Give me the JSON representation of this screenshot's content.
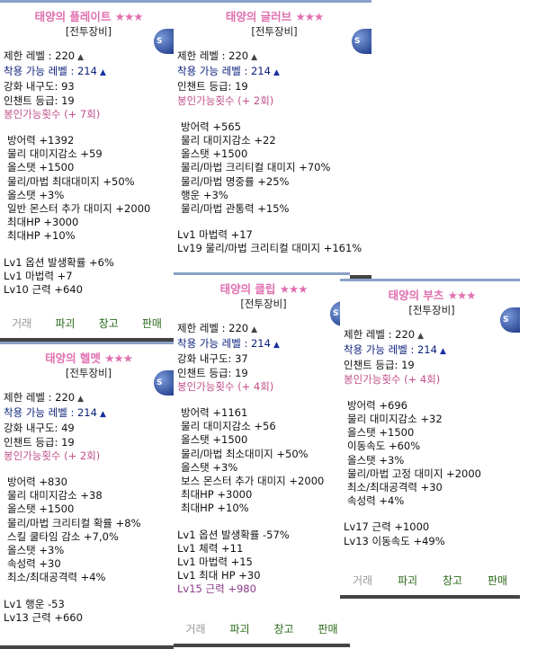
{
  "common": {
    "category": "[전투장비]",
    "stars": "★★★",
    "req_level_label": "제한 레벨 : ",
    "wear_level_label": "착용 가능 레벨 : ",
    "durability_label": "강화 내구도: ",
    "enchant_label": "인챈트 등급: ",
    "badge": "S",
    "footer": [
      "거래",
      "파괴",
      "창고",
      "판매"
    ]
  },
  "panels": [
    {
      "id": "plate",
      "title": "태양의 플레이트",
      "req_level": "220",
      "wear_level": "214",
      "durability": "93",
      "enchant": "19",
      "seal": "봉인가능횟수 (+ 7회)",
      "stats": [
        "방어력 +1392",
        "물리 대미지감소 +59",
        "올스탯 +1500",
        "물리/마법 최대대미지 +50%",
        "올스탯 +3%",
        "일반 몬스터 추가 대미지 +2000",
        "최대HP +3000",
        "최대HP +10%"
      ],
      "options": [
        {
          "text": "Lv1 옵션 발생확률 +6%"
        },
        {
          "text": "Lv1 마법력 +7"
        },
        {
          "text": "Lv10 근력 +640"
        }
      ],
      "footer": true
    },
    {
      "id": "glove",
      "title": "태양의 글러브",
      "req_level": "220",
      "wear_level": "214",
      "enchant": "19",
      "seal": "봉인가능횟수 (+ 2회)",
      "stats": [
        "방어력 +565",
        "물리 대미지감소 +22",
        "올스탯 +1500",
        "물리/마법 크리티컬 대미지 +70%",
        "물리/마법 명중률 +25%",
        "행운 +3%",
        "물리/마법 관통력 +15%"
      ],
      "options": [
        {
          "text": "Lv1 마법력 +17"
        },
        {
          "text": "Lv19 물리/마법 크리티컬 대미지 +161%"
        }
      ],
      "footer": false
    },
    {
      "id": "helmet",
      "title": "태양의 헬멧",
      "req_level": "220",
      "wear_level": "214",
      "durability": "49",
      "enchant": "19",
      "seal": "봉인가능횟수 (+ 2회)",
      "stats": [
        "방어력 +830",
        "물리 대미지감소 +38",
        "올스탯 +1500",
        "물리/마법 크리티컬 확률 +8%",
        "스킬 쿨타임 감소 +7,0%",
        "올스탯 +3%",
        "속성력 +30",
        "최소/최대공격력 +4%"
      ],
      "options": [
        {
          "text": "Lv1 행운 -53"
        },
        {
          "text": "Lv13 근력 +660"
        }
      ],
      "footer": false
    },
    {
      "id": "clip",
      "title": "태양의 클립",
      "req_level": "220",
      "wear_level": "214",
      "durability": "37",
      "enchant": "19",
      "seal": "봉인가능횟수 (+ 4회)",
      "stats": [
        "방어력 +1161",
        "물리 대미지감소 +56",
        "올스탯 +1500",
        "물리/마법 최소대미지 +50%",
        "올스탯 +3%",
        "보스 몬스터 추가 대미지 +2000",
        "최대HP +3000",
        "최대HP +10%"
      ],
      "options": [
        {
          "text": "Lv1 옵션 발생확률 -57%"
        },
        {
          "text": "Lv1 체력 +11"
        },
        {
          "text": "Lv1 마법력 +15"
        },
        {
          "text": "Lv1 최대 HP +30"
        },
        {
          "text": "Lv15 근력 +980",
          "highlight": true
        }
      ],
      "footer": true
    },
    {
      "id": "boots",
      "title": "태양의 부츠",
      "req_level": "220",
      "wear_level": "214",
      "enchant": "19",
      "seal": "봉인가능횟수 (+ 4회)",
      "stats": [
        "방어력 +696",
        "물리 대미지감소 +32",
        "올스탯 +1500",
        "이동속도 +60%",
        "올스탯 +3%",
        "물리/마법 고정 대미지 +2000",
        "최소/최대공격력 +30",
        "속성력 +4%"
      ],
      "options": [
        {
          "text": "Lv17 근력 +1000"
        },
        {
          "text": "Lv13 이동속도 +49%"
        }
      ],
      "footer": true
    }
  ]
}
